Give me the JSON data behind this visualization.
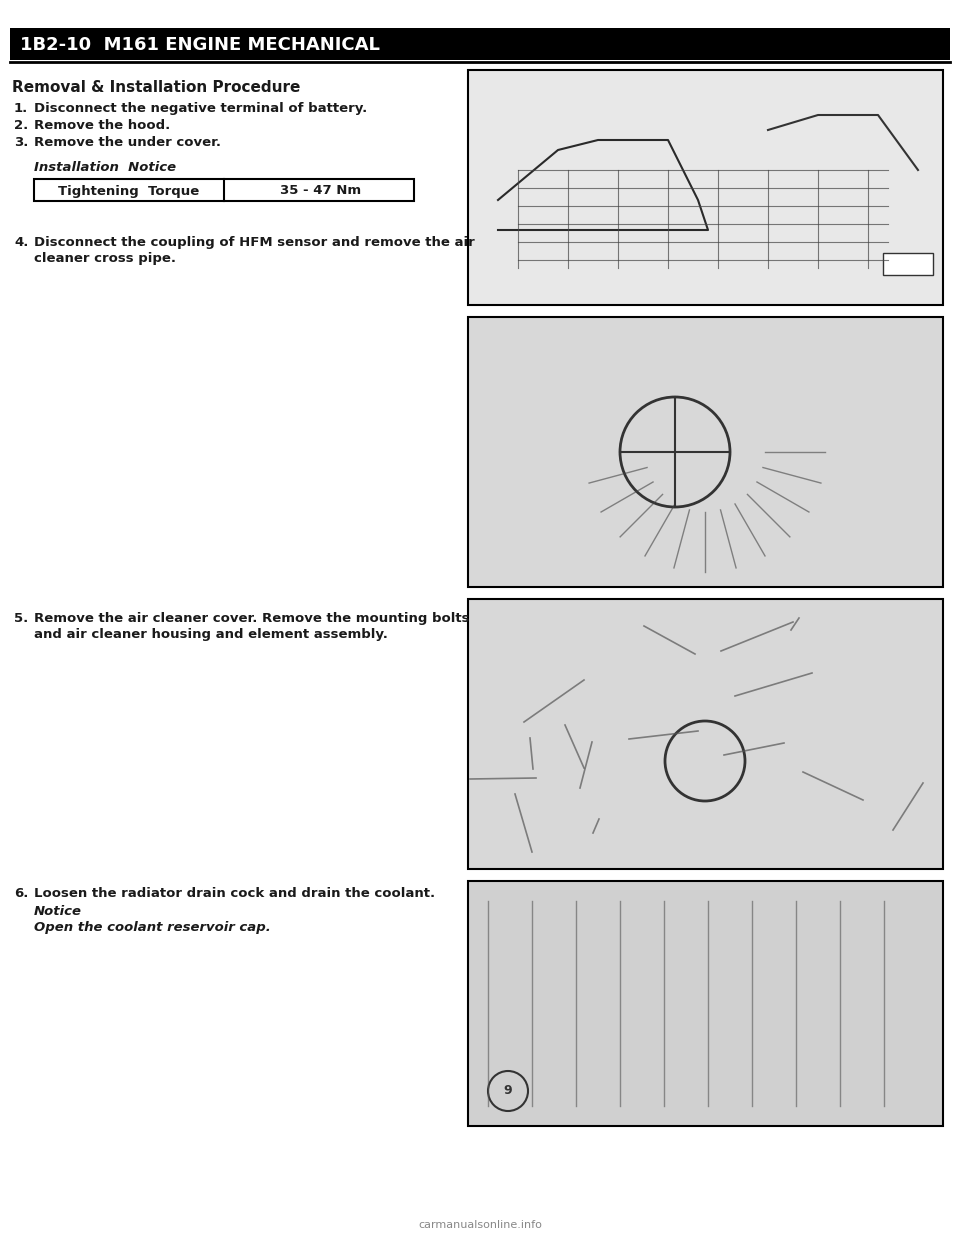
{
  "bg_color": "#ffffff",
  "header_bg": "#000000",
  "header_text": "1B2-10  M161 ENGINE MECHANICAL",
  "header_text_color": "#ffffff",
  "header_font_size": 13,
  "section_title": "Removal & Installation Procedure",
  "section_title_font_size": 11,
  "steps": [
    {
      "num": "1.",
      "text": "Disconnect the negative terminal of battery."
    },
    {
      "num": "2.",
      "text": "Remove the hood."
    },
    {
      "num": "3.",
      "text": "Remove the under cover."
    }
  ],
  "installation_notice": "Installation  Notice",
  "torque_label": "Tightening  Torque",
  "torque_value": "35 - 47 Nm",
  "step4_num": "4.",
  "step4_text": "Disconnect the coupling of HFM sensor and remove the air\n    cleaner cross pipe.",
  "step5_num": "5.",
  "step5_text": "Remove the air cleaner cover. Remove the mounting bolts\n    and air cleaner housing and element assembly.",
  "step6_num": "6.",
  "step6_text": "Loosen the radiator drain cock and drain the coolant.",
  "step6_notice": "Notice",
  "step6_notice_text": "Open the coolant reservoir cap.",
  "watermark": "carmanualsonline.info",
  "text_color": "#1a1a1a",
  "font_size_body": 9.5
}
